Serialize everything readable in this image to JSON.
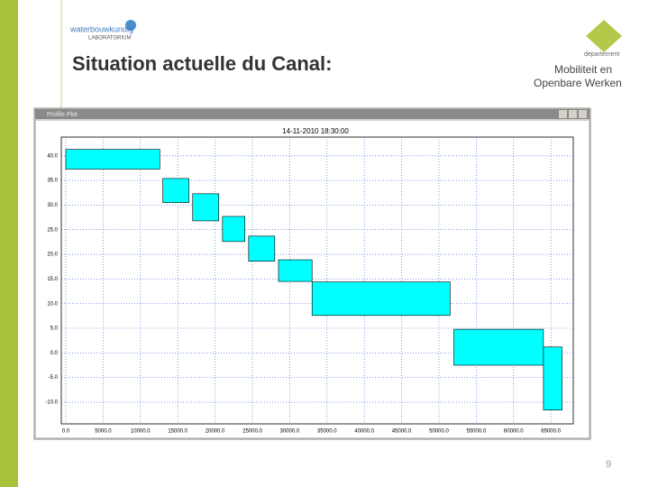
{
  "slide": {
    "title": "Situation actuelle du Canal:",
    "logo_left_top": "waterbouwkundig",
    "logo_left_bottom": "LABORATORIUM",
    "logo_right_small": "departement",
    "logo_right_line1": "Mobiliteit en",
    "logo_right_line2": "Openbare Werken",
    "page_number": "9"
  },
  "window": {
    "caption": "Profile Plot"
  },
  "chart_data": {
    "type": "profile",
    "title": "14-11-2010 18:30:00",
    "color": "#00ffff",
    "grid": true,
    "x_start": [
      0,
      13000,
      17000,
      21000,
      24500,
      28500,
      33000,
      52000,
      64000
    ],
    "x_end": [
      12600,
      16500,
      20500,
      24000,
      28000,
      33000,
      51500,
      64000,
      66500
    ],
    "top": [
      41.3,
      35.4,
      32.3,
      27.7,
      23.7,
      18.9,
      14.4,
      4.8,
      1.2
    ],
    "bottom": [
      37.3,
      30.5,
      26.8,
      22.6,
      18.6,
      14.5,
      7.6,
      -2.5,
      -11.6
    ],
    "xlim": [
      -600,
      68000
    ],
    "ylim": [
      -14.4,
      43.8
    ],
    "xticks": [
      {
        "value": 0,
        "label": "0.0"
      },
      {
        "value": 5000,
        "label": "5000.0"
      },
      {
        "value": 10000,
        "label": "10000.0"
      },
      {
        "value": 15000,
        "label": "15000.0"
      },
      {
        "value": 20000,
        "label": "20000.0"
      },
      {
        "value": 25000,
        "label": "25000.0"
      },
      {
        "value": 30000,
        "label": "30000.0"
      },
      {
        "value": 35000,
        "label": "35000.0"
      },
      {
        "value": 40000,
        "label": "40000.0"
      },
      {
        "value": 45000,
        "label": "45000.0"
      },
      {
        "value": 50000,
        "label": "50000.0"
      },
      {
        "value": 55000,
        "label": "55000.0"
      },
      {
        "value": 60000,
        "label": "60000.0"
      },
      {
        "value": 65000,
        "label": "65000.0"
      }
    ],
    "yticks": [
      {
        "value": 40,
        "label": "40.0"
      },
      {
        "value": 35,
        "label": "35.0"
      },
      {
        "value": 30,
        "label": "30.0"
      },
      {
        "value": 25,
        "label": "25.0"
      },
      {
        "value": 20,
        "label": "20.0"
      },
      {
        "value": 15,
        "label": "15.0"
      },
      {
        "value": 10,
        "label": "10.0"
      },
      {
        "value": 5,
        "label": "5.0"
      },
      {
        "value": 0,
        "label": "0.0"
      },
      {
        "value": -5,
        "label": "-5.0"
      },
      {
        "value": -10,
        "label": "-10.0"
      }
    ]
  }
}
